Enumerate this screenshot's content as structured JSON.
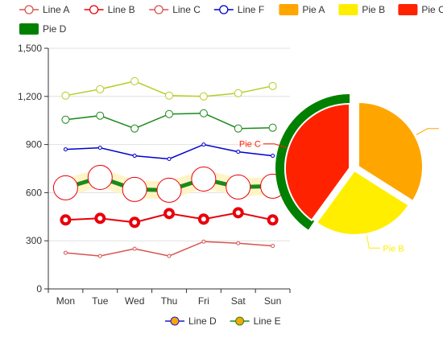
{
  "chart_data": [
    {
      "type": "line",
      "categories": [
        "Mon",
        "Tue",
        "Wed",
        "Thu",
        "Fri",
        "Sat",
        "Sun"
      ],
      "ylim": [
        0,
        1500
      ],
      "yticks": [
        "0",
        "300",
        "600",
        "900",
        "1,200",
        "1,500"
      ],
      "grid": true,
      "series": [
        {
          "name": "Line A",
          "color": "#d9534f",
          "marker": "dot-small",
          "values": [
            225,
            205,
            250,
            205,
            295,
            285,
            268
          ]
        },
        {
          "name": "Line B",
          "color": "#e8000b",
          "marker": "thick-ring",
          "values": [
            430,
            440,
            415,
            470,
            435,
            475,
            430
          ]
        },
        {
          "name": "Line C",
          "color": "#e8000b",
          "marker": "big-circle",
          "line_color": "#1a8a1a",
          "values": [
            630,
            695,
            620,
            615,
            685,
            635,
            640
          ]
        },
        {
          "name": "Line D",
          "color": "#1a8a1a",
          "marker": "circle",
          "values": [
            1055,
            1080,
            1000,
            1090,
            1095,
            1000,
            1005
          ]
        },
        {
          "name": "Line E",
          "color": "#b8cc22",
          "marker": "circle",
          "values": [
            1205,
            1245,
            1295,
            1205,
            1200,
            1220,
            1265
          ]
        },
        {
          "name": "Line F",
          "color": "#0000cc",
          "marker": "dot-small",
          "values": [
            870,
            880,
            830,
            810,
            900,
            855,
            830
          ]
        }
      ]
    },
    {
      "type": "pie",
      "slices": [
        {
          "name": "Pie A",
          "value": 34,
          "color": "#ffa500",
          "label": ""
        },
        {
          "name": "Pie B",
          "value": 26,
          "color": "#ffee00",
          "label": "Pie B"
        },
        {
          "name": "Pie C",
          "value": 40,
          "color": "#ff2200",
          "label": "Pie C"
        }
      ],
      "ring_color": "#008000"
    }
  ],
  "legend_top": [
    {
      "name": "Line A",
      "kind": "line",
      "color": "#d9534f"
    },
    {
      "name": "Line B",
      "kind": "line",
      "color": "#e8000b"
    },
    {
      "name": "Line C",
      "kind": "line",
      "color": "#d9534f"
    },
    {
      "name": "Line F",
      "kind": "line",
      "color": "#0000cc"
    },
    {
      "name": "Pie A",
      "kind": "box",
      "color": "#ffa500"
    },
    {
      "name": "Pie B",
      "kind": "box",
      "color": "#ffee00"
    },
    {
      "name": "Pie C",
      "kind": "box",
      "color": "#ff2200"
    },
    {
      "name": "Pie D",
      "kind": "box",
      "color": "#008000"
    }
  ],
  "legend_bottom": [
    {
      "name": "Line D",
      "kind": "line-filled",
      "color": "#1a1acc",
      "fill": "#ffa500"
    },
    {
      "name": "Line E",
      "kind": "line-filled",
      "color": "#1a8a1a",
      "fill": "#ffa500"
    }
  ]
}
